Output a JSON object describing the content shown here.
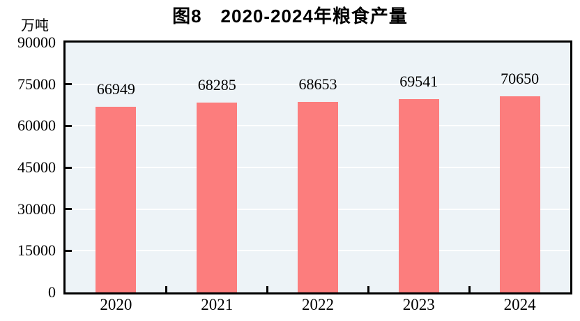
{
  "chart_data": {
    "type": "bar",
    "title": "图8　2020-2024年粮食产量",
    "unit_label": "万吨",
    "categories": [
      "2020",
      "2021",
      "2022",
      "2023",
      "2024"
    ],
    "values": [
      66949,
      68285,
      68653,
      69541,
      70650
    ],
    "xlabel": "",
    "ylabel": "万吨",
    "ylim": [
      0,
      90000
    ],
    "yticks": [
      0,
      15000,
      30000,
      45000,
      60000,
      75000,
      90000
    ],
    "grid": true,
    "legend_position": "none",
    "colors": {
      "bar": "#fc7d7d",
      "plot_background": "#edf3f7",
      "gridline": "#ffffff",
      "axis": "#000000",
      "text": "#000000",
      "page_background": "#ffffff"
    }
  }
}
